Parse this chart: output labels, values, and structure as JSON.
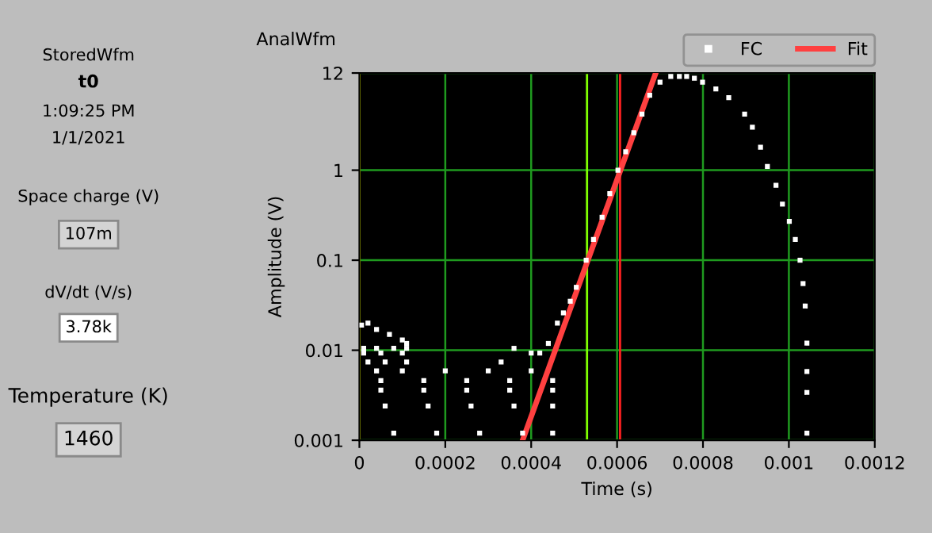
{
  "chart_data": {
    "type": "scatter",
    "title": "AnalWfm",
    "xlabel": "Time (s)",
    "ylabel": "Amplitude (V)",
    "log": "y",
    "xlim": [
      0,
      0.0012
    ],
    "xticks": [
      0,
      0.0002,
      0.0004,
      0.0006,
      0.0008,
      0.001,
      0.0012
    ],
    "ylim": [
      0.001,
      12
    ],
    "yticks": [
      0.001,
      0.01,
      0.1,
      1,
      12
    ],
    "grid": true,
    "legend": "top right",
    "marker": "square",
    "series": [
      {
        "name": "FC",
        "color": "#ffffff",
        "x": [
          5e-06,
          2e-05,
          4e-05,
          7e-05,
          0.0001,
          0.00011,
          1e-05,
          4e-05,
          8e-05,
          0.00011,
          1e-05,
          5e-05,
          0.0001,
          2e-05,
          6e-05,
          0.00011,
          4e-05,
          0.0001,
          0.0002,
          0.0003,
          0.0004,
          5e-05,
          0.00015,
          0.00025,
          0.00035,
          0.00045,
          5e-05,
          0.00015,
          0.00025,
          0.00035,
          0.00045,
          6e-05,
          0.00016,
          0.00026,
          0.00036,
          0.00045,
          8e-05,
          0.00018,
          0.00028,
          0.00038,
          0.00045,
          0.00033,
          0.0004,
          0.00044,
          0.00036,
          0.00042,
          0.000461,
          0.000475,
          0.000491,
          0.000505,
          0.000528,
          0.000545,
          0.000565,
          0.000583,
          0.000602,
          0.00062,
          0.000639,
          0.000658,
          0.000676,
          0.0007,
          0.000725,
          0.000745,
          0.000762,
          0.00078,
          0.000799,
          0.00083,
          0.00086,
          0.000897,
          0.000915,
          0.000934,
          0.00095,
          0.00097,
          0.000985,
          0.001001,
          0.001015,
          0.001026,
          0.001033,
          0.001038,
          0.001042,
          0.001042,
          0.001042,
          0.001042
        ],
        "values": [
          0.019,
          0.02,
          0.017,
          0.015,
          0.013,
          0.0119,
          0.0105,
          0.0105,
          0.0105,
          0.0105,
          0.0093,
          0.0093,
          0.0093,
          0.0074,
          0.0074,
          0.0074,
          0.0059,
          0.0059,
          0.0059,
          0.0059,
          0.0059,
          0.0046,
          0.0046,
          0.0046,
          0.0046,
          0.0046,
          0.0036,
          0.0036,
          0.0036,
          0.0036,
          0.0036,
          0.0024,
          0.0024,
          0.0024,
          0.0024,
          0.0024,
          0.0012,
          0.0012,
          0.0012,
          0.0012,
          0.0012,
          0.0074,
          0.0093,
          0.0119,
          0.0105,
          0.0093,
          0.02,
          0.026,
          0.035,
          0.05,
          0.1,
          0.17,
          0.3,
          0.55,
          1.0,
          1.6,
          2.6,
          4.2,
          6.8,
          9.5,
          11,
          11,
          11,
          10.5,
          9.5,
          8,
          6.4,
          4.2,
          3,
          1.8,
          1.1,
          0.68,
          0.42,
          0.27,
          0.17,
          0.1,
          0.055,
          0.031,
          0.012,
          0.0058,
          0.0034,
          0.0012
        ]
      },
      {
        "name": "Fit",
        "type": "line",
        "color": "#ff4040",
        "line_style": "solid",
        "marker": "none",
        "x": [
          0.00038,
          0.00069
        ],
        "values": [
          0.001,
          12
        ]
      }
    ],
    "ref_lines": [
      {
        "axis": "x",
        "value": 0,
        "label": null,
        "color": "#ffff00"
      },
      {
        "axis": "x",
        "value": 0.00053,
        "label": null,
        "color": "#80ff00"
      },
      {
        "axis": "x",
        "value": 0.000607,
        "label": null,
        "color": "#ff2020"
      }
    ],
    "annotations": [
      "StoredWfm",
      "t0",
      "1:09:25 PM",
      "1/1/2021",
      "Space charge (V)",
      "107m",
      "dV/dt (V/s)",
      "3.78k",
      "Temperature (K)",
      "1460"
    ]
  }
}
